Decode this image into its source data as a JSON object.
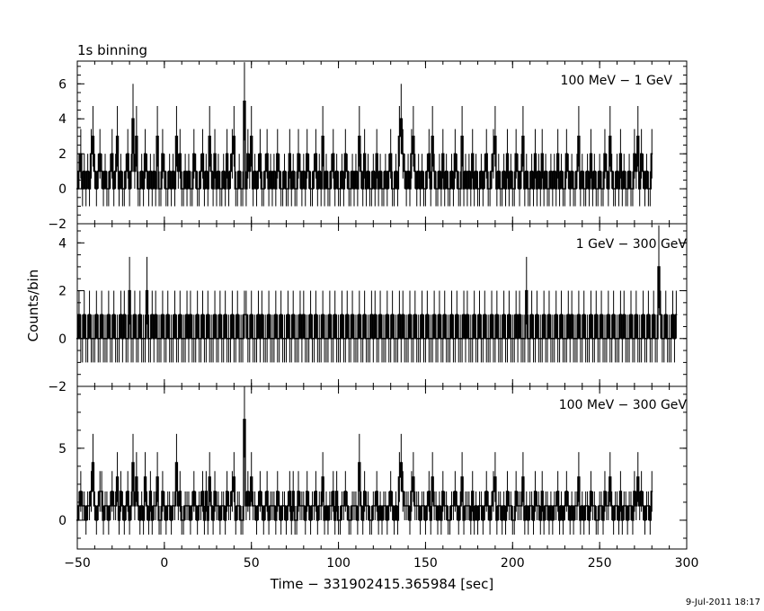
{
  "chart_data": {
    "type": "line",
    "title": "1s binning",
    "xlabel": "Time − 331902415.365984 [sec]",
    "ylabel": "Counts/bin",
    "xlim": [
      -50,
      300
    ],
    "x_ticks": [
      -50,
      0,
      50,
      100,
      150,
      200,
      250,
      300
    ],
    "x_tick_labels": [
      "−50",
      "0",
      "50",
      "100",
      "150",
      "200",
      "250",
      "300"
    ],
    "bin_width_s": 1,
    "panels": [
      {
        "label": "100 MeV − 1 GeV",
        "ylim": [
          -2,
          7.3
        ],
        "y_ticks": [
          -2,
          0,
          2,
          4,
          6
        ],
        "y_tick_labels": [
          "−2",
          "0",
          "2",
          "4",
          "6"
        ],
        "errorbars": true,
        "series": [
          {
            "name": "100 MeV − 1 GeV",
            "x_start": -50,
            "x_step": 1,
            "values": [
              0,
              1,
              2,
              0,
              1,
              0,
              1,
              0,
              2,
              3,
              1,
              0,
              1,
              2,
              1,
              0,
              1,
              0,
              0,
              1,
              2,
              0,
              1,
              3,
              0,
              1,
              0,
              0,
              1,
              2,
              0,
              1,
              4,
              1,
              3,
              0,
              0,
              1,
              0,
              2,
              1,
              0,
              1,
              0,
              1,
              0,
              3,
              0,
              0,
              2,
              1,
              0,
              0,
              1,
              0,
              1,
              0,
              3,
              1,
              2,
              0,
              0,
              1,
              0,
              1,
              0,
              0,
              2,
              1,
              0,
              0,
              1,
              2,
              0,
              1,
              0,
              3,
              1,
              0,
              2,
              0,
              1,
              0,
              0,
              1,
              0,
              2,
              0,
              1,
              2,
              3,
              0,
              0,
              1,
              0,
              0,
              5,
              0,
              2,
              1,
              3,
              0,
              1,
              0,
              1,
              2,
              0,
              0,
              1,
              2,
              0,
              1,
              0,
              1,
              0,
              2,
              1,
              0,
              0,
              1,
              0,
              0,
              2,
              0,
              1,
              0,
              0,
              2,
              1,
              0,
              1,
              0,
              2,
              1,
              0,
              0,
              1,
              2,
              0,
              1,
              0,
              3,
              0,
              1,
              0,
              0,
              1,
              2,
              0,
              1,
              0,
              0,
              1,
              0,
              2,
              1,
              0,
              0,
              1,
              0,
              1,
              0,
              3,
              1,
              0,
              2,
              0,
              1,
              0,
              0,
              1,
              0,
              2,
              0,
              1,
              0,
              0,
              1,
              0,
              1,
              2,
              0,
              0,
              1,
              0,
              3,
              4,
              2,
              1,
              0,
              1,
              0,
              2,
              3,
              1,
              0,
              1,
              0,
              1,
              0,
              0,
              1,
              2,
              0,
              3,
              1,
              0,
              0,
              1,
              0,
              2,
              0,
              1,
              0,
              0,
              1,
              0,
              2,
              1,
              0,
              0,
              3,
              0,
              1,
              0,
              1,
              0,
              2,
              0,
              1,
              0,
              0,
              1,
              0,
              1,
              2,
              0,
              0,
              1,
              2,
              3,
              0,
              1,
              0,
              0,
              1,
              0,
              2,
              0,
              1,
              0,
              0,
              2,
              1,
              0,
              1,
              3,
              0,
              1,
              0,
              0,
              1,
              0,
              2,
              0,
              1,
              0,
              2,
              0,
              1,
              0,
              0,
              1,
              0,
              1,
              0,
              2,
              0,
              1,
              0,
              0,
              2,
              1,
              0,
              1,
              0,
              0,
              1,
              3,
              0,
              1,
              0,
              0,
              1,
              0,
              2,
              0,
              1,
              0,
              0,
              1,
              0,
              0,
              2,
              1,
              0,
              3,
              1,
              0,
              0,
              1,
              0,
              2,
              0,
              1,
              0,
              0,
              1,
              0,
              0,
              2,
              1,
              3,
              0,
              2,
              1,
              0,
              1,
              0,
              0,
              2
            ]
          }
        ]
      },
      {
        "label": "1 GeV − 300 GeV",
        "ylim": [
          -2,
          4.8
        ],
        "y_ticks": [
          -2,
          0,
          2,
          4
        ],
        "y_tick_labels": [
          "−2",
          "0",
          "2",
          "4"
        ],
        "errorbars": true,
        "series": [
          {
            "name": "1 GeV − 300 GeV",
            "x_start": -50,
            "x_step": 1,
            "values": [
              0,
              1,
              0,
              0,
              1,
              0,
              0,
              1,
              0,
              0,
              0,
              1,
              0,
              0,
              1,
              0,
              0,
              0,
              1,
              0,
              0,
              1,
              0,
              0,
              0,
              1,
              0,
              1,
              0,
              0,
              2,
              0,
              0,
              1,
              0,
              0,
              1,
              0,
              0,
              0,
              2,
              0,
              0,
              1,
              0,
              1,
              0,
              0,
              0,
              1,
              0,
              0,
              1,
              0,
              0,
              0,
              1,
              0,
              0,
              1,
              0,
              0,
              0,
              1,
              0,
              1,
              0,
              0,
              0,
              1,
              0,
              0,
              1,
              0,
              0,
              1,
              0,
              0,
              0,
              1,
              0,
              0,
              1,
              0,
              0,
              1,
              0,
              0,
              0,
              1,
              0,
              0,
              1,
              0,
              0,
              0,
              1,
              1,
              0,
              0,
              1,
              0,
              0,
              0,
              1,
              0,
              1,
              0,
              0,
              0,
              1,
              0,
              0,
              0,
              1,
              0,
              0,
              1,
              0,
              0,
              0,
              1,
              0,
              0,
              1,
              0,
              0,
              0,
              1,
              0,
              1,
              0,
              0,
              0,
              1,
              0,
              0,
              1,
              0,
              0,
              0,
              1,
              0,
              0,
              0,
              1,
              0,
              0,
              1,
              0,
              0,
              0,
              1,
              0,
              0,
              1,
              0,
              0,
              1,
              0,
              0,
              0,
              1,
              0,
              0,
              1,
              0,
              0,
              0,
              1,
              0,
              1,
              0,
              0,
              1,
              0,
              0,
              0,
              1,
              0,
              0,
              1,
              0,
              0,
              0,
              1,
              0,
              1,
              0,
              0,
              0,
              1,
              0,
              0,
              1,
              0,
              0,
              0,
              1,
              0,
              0,
              1,
              0,
              0,
              0,
              1,
              0,
              0,
              1,
              0,
              0,
              1,
              0,
              0,
              0,
              1,
              0,
              0,
              1,
              0,
              0,
              0,
              1,
              0,
              1,
              0,
              0,
              0,
              1,
              0,
              0,
              1,
              0,
              0,
              1,
              0,
              0,
              0,
              1,
              0,
              0,
              1,
              0,
              0,
              0,
              1,
              0,
              0,
              1,
              0,
              0,
              0,
              1,
              0,
              1,
              0,
              0,
              0,
              2,
              0,
              0,
              1,
              0,
              0,
              1,
              0,
              0,
              0,
              1,
              0,
              0,
              1,
              0,
              0,
              0,
              1,
              0,
              0,
              1,
              0,
              0,
              0,
              1,
              0,
              1,
              0,
              0,
              0,
              1,
              0,
              0,
              1,
              0,
              0,
              0,
              1,
              0,
              0,
              1,
              0,
              0,
              1,
              0,
              0,
              0,
              1,
              0,
              0,
              1,
              0,
              0,
              0,
              1,
              0,
              1,
              0,
              0,
              0,
              1,
              0,
              0,
              1,
              0,
              0,
              0,
              1,
              0,
              0,
              1,
              0,
              0,
              1,
              0,
              0,
              3,
              1,
              0,
              0,
              1,
              0,
              0,
              0,
              1,
              0,
              1
            ]
          }
        ]
      },
      {
        "label": "100 MeV − 300 GeV",
        "ylim": [
          -2,
          9.3
        ],
        "y_ticks": [
          0,
          5
        ],
        "y_tick_labels": [
          "0",
          "5"
        ],
        "errorbars": true,
        "series": [
          {
            "name": "100 MeV − 300 GeV",
            "x_start": -50,
            "x_step": 1,
            "values": [
              0,
              1,
              2,
              1,
              1,
              0,
              1,
              1,
              2,
              4,
              1,
              0,
              1,
              2,
              2,
              0,
              1,
              1,
              0,
              1,
              2,
              1,
              1,
              3,
              0,
              2,
              1,
              0,
              1,
              2,
              0,
              1,
              4,
              1,
              3,
              1,
              0,
              1,
              0,
              3,
              1,
              0,
              2,
              0,
              1,
              1,
              3,
              0,
              0,
              2,
              1,
              0,
              1,
              1,
              0,
              1,
              1,
              4,
              1,
              2,
              0,
              0,
              1,
              1,
              1,
              0,
              1,
              2,
              1,
              0,
              1,
              1,
              2,
              0,
              2,
              0,
              3,
              1,
              0,
              2,
              1,
              1,
              0,
              1,
              1,
              0,
              2,
              1,
              1,
              2,
              3,
              0,
              1,
              1,
              0,
              0,
              7,
              1,
              2,
              1,
              3,
              1,
              1,
              0,
              1,
              2,
              1,
              0,
              1,
              2,
              0,
              1,
              1,
              1,
              0,
              2,
              1,
              0,
              1,
              1,
              0,
              1,
              2,
              0,
              2,
              0,
              0,
              2,
              1,
              1,
              1,
              0,
              2,
              1,
              0,
              1,
              1,
              2,
              0,
              1,
              1,
              3,
              0,
              1,
              0,
              1,
              1,
              2,
              0,
              2,
              0,
              0,
              1,
              1,
              2,
              1,
              0,
              0,
              1,
              1,
              1,
              0,
              4,
              1,
              0,
              2,
              1,
              1,
              0,
              0,
              1,
              1,
              2,
              0,
              1,
              0,
              1,
              1,
              0,
              1,
              2,
              1,
              0,
              1,
              0,
              3,
              4,
              2,
              1,
              1,
              1,
              0,
              2,
              3,
              1,
              1,
              1,
              0,
              1,
              1,
              0,
              1,
              2,
              0,
              3,
              1,
              1,
              0,
              1,
              0,
              2,
              1,
              1,
              0,
              0,
              1,
              1,
              2,
              1,
              0,
              1,
              3,
              0,
              1,
              1,
              1,
              0,
              2,
              0,
              1,
              0,
              1,
              1,
              0,
              1,
              2,
              1,
              0,
              1,
              2,
              3,
              0,
              1,
              1,
              0,
              1,
              0,
              2,
              1,
              1,
              0,
              0,
              2,
              1,
              1,
              1,
              3,
              0,
              1,
              0,
              1,
              1,
              0,
              2,
              1,
              1,
              0,
              2,
              0,
              1,
              1,
              0,
              1,
              0,
              1,
              1,
              2,
              0,
              1,
              0,
              1,
              2,
              1,
              0,
              1,
              0,
              1,
              1,
              3,
              0,
              1,
              0,
              1,
              1,
              0,
              2,
              1,
              1,
              0,
              0,
              1,
              1,
              0,
              2,
              1,
              1,
              3,
              1,
              0,
              1,
              1,
              0,
              2,
              0,
              1,
              1,
              0,
              1,
              1,
              0,
              2,
              1,
              3,
              1,
              2,
              1,
              0,
              1,
              1,
              0,
              2
            ]
          }
        ]
      }
    ]
  },
  "footer": {
    "timestamp": "9‑Jul‑2011 18:17"
  }
}
